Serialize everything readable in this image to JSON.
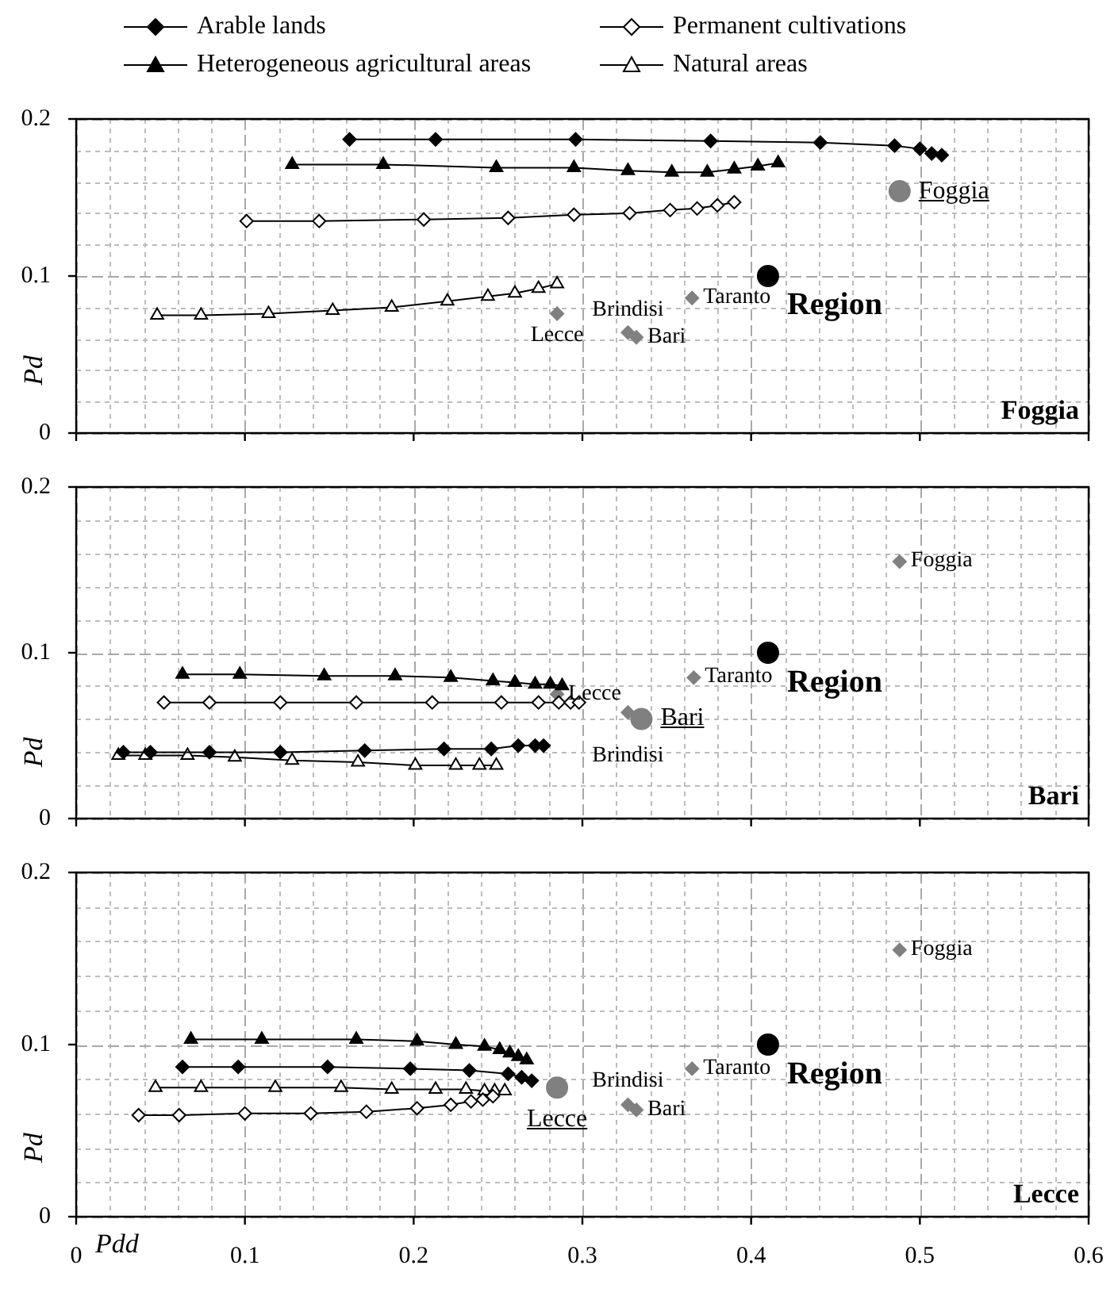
{
  "chart_data": [
    {
      "type": "line",
      "title": "Foggia",
      "ylabel": "Pd",
      "legend": "top",
      "grid": true,
      "tick_labels": "y",
      "xlim": [
        0,
        0.6
      ],
      "ylim": [
        0,
        0.2
      ],
      "xticks": [
        0,
        {
          "value": 0.02,
          "label": null
        },
        {
          "value": 0.04,
          "label": null
        },
        {
          "value": 0.06,
          "label": null
        },
        {
          "value": 0.08,
          "label": null
        },
        0.1,
        {
          "value": 0.12,
          "label": null
        },
        {
          "value": 0.14,
          "label": null
        },
        {
          "value": 0.16,
          "label": null
        },
        {
          "value": 0.18,
          "label": null
        },
        0.2,
        {
          "value": 0.22,
          "label": null
        },
        {
          "value": 0.24,
          "label": null
        },
        {
          "value": 0.26,
          "label": null
        },
        {
          "value": 0.28,
          "label": null
        },
        0.3,
        {
          "value": 0.32,
          "label": null
        },
        {
          "value": 0.34,
          "label": null
        },
        {
          "value": 0.36,
          "label": null
        },
        {
          "value": 0.38,
          "label": null
        },
        0.4,
        {
          "value": 0.42,
          "label": null
        },
        {
          "value": 0.44,
          "label": null
        },
        {
          "value": 0.46,
          "label": null
        },
        {
          "value": 0.48,
          "label": null
        },
        0.5,
        {
          "value": 0.52,
          "label": null
        },
        {
          "value": 0.54,
          "label": null
        },
        {
          "value": 0.56,
          "label": null
        },
        {
          "value": 0.58,
          "label": null
        },
        0.6
      ],
      "yticks": [
        0,
        {
          "value": 0.02,
          "label": null
        },
        {
          "value": 0.04,
          "label": null
        },
        {
          "value": 0.06,
          "label": null
        },
        {
          "value": 0.08,
          "label": null
        },
        0.1,
        {
          "value": 0.12,
          "label": null
        },
        {
          "value": 0.14,
          "label": null
        },
        {
          "value": 0.16,
          "label": null
        },
        {
          "value": 0.18,
          "label": null
        },
        0.2
      ],
      "series": [
        {
          "name": "Arable lands",
          "color": "#000000",
          "marker": "diamond",
          "x": [
            0.162,
            0.213,
            0.296,
            0.376,
            0.441,
            0.485,
            0.5,
            0.507,
            0.513
          ],
          "values": [
            0.187,
            0.187,
            0.187,
            0.186,
            0.185,
            0.183,
            0.181,
            0.178,
            0.177
          ]
        },
        {
          "name": "Permanent cultivations",
          "color": "#000000",
          "marker": "diamond",
          "colors": [
            "#ffffff",
            "#ffffff",
            "#ffffff",
            "#ffffff",
            "#ffffff",
            "#ffffff",
            "#ffffff",
            "#ffffff",
            "#ffffff",
            "#ffffff"
          ],
          "x": [
            0.101,
            0.144,
            0.206,
            0.256,
            0.295,
            0.328,
            0.352,
            0.368,
            0.38,
            0.39
          ],
          "values": [
            0.135,
            0.135,
            0.136,
            0.137,
            0.139,
            0.14,
            0.142,
            0.143,
            0.145,
            0.147
          ]
        },
        {
          "name": "Heterogeneous agricultural areas",
          "color": "#000000",
          "marker": "triangle",
          "x": [
            0.128,
            0.182,
            0.249,
            0.295,
            0.327,
            0.353,
            0.374,
            0.39,
            0.404,
            0.416
          ],
          "values": [
            0.171,
            0.171,
            0.169,
            0.169,
            0.167,
            0.166,
            0.166,
            0.168,
            0.17,
            0.172
          ]
        },
        {
          "name": "Natural areas",
          "color": "#000000",
          "marker": "triangle",
          "colors": [
            "#ffffff",
            "#ffffff",
            "#ffffff",
            "#ffffff",
            "#ffffff",
            "#ffffff",
            "#ffffff",
            "#ffffff",
            "#ffffff",
            "#ffffff"
          ],
          "x": [
            0.048,
            0.074,
            0.114,
            0.152,
            0.187,
            0.22,
            0.244,
            0.26,
            0.274,
            0.285
          ],
          "values": [
            0.075,
            0.075,
            0.076,
            0.078,
            0.08,
            0.084,
            0.087,
            0.089,
            0.092,
            0.095
          ]
        },
        {
          "type": "scatter",
          "color": "#808080",
          "marker": "diamond",
          "x": [
            0.365,
            0.285,
            0.327,
            0.332
          ],
          "values": [
            0.086,
            0.076,
            0.064,
            0.061
          ]
        },
        {
          "type": "scatter",
          "color": "#808080",
          "marker": "circle",
          "x": [
            0.488
          ],
          "values": [
            0.154
          ]
        },
        {
          "type": "scatter",
          "color": "#000000",
          "marker": "circle",
          "x": [
            0.41
          ],
          "values": [
            0.1
          ]
        }
      ],
      "annotations": [
        {
          "text": "Foggia",
          "x": 0.488,
          "y": 0.154
        },
        {
          "text": "Region",
          "x": 0.41,
          "y": 0.1
        },
        {
          "text": "Taranto",
          "x": 0.365,
          "y": 0.086
        },
        {
          "text": "Lecce",
          "x": 0.285,
          "y": 0.076
        },
        {
          "text": "Brindisi",
          "x": 0.327,
          "y": 0.064
        },
        {
          "text": "Bari",
          "x": 0.332,
          "y": 0.061
        }
      ]
    },
    {
      "type": "line",
      "title": "Bari",
      "ylabel": "Pd",
      "grid": true,
      "tick_labels": "y",
      "xlim": [
        0,
        0.6
      ],
      "ylim": [
        0,
        0.2
      ],
      "xticks": [
        0,
        {
          "value": 0.02,
          "label": null
        },
        {
          "value": 0.04,
          "label": null
        },
        {
          "value": 0.06,
          "label": null
        },
        {
          "value": 0.08,
          "label": null
        },
        0.1,
        {
          "value": 0.12,
          "label": null
        },
        {
          "value": 0.14,
          "label": null
        },
        {
          "value": 0.16,
          "label": null
        },
        {
          "value": 0.18,
          "label": null
        },
        0.2,
        {
          "value": 0.22,
          "label": null
        },
        {
          "value": 0.24,
          "label": null
        },
        {
          "value": 0.26,
          "label": null
        },
        {
          "value": 0.28,
          "label": null
        },
        0.3,
        {
          "value": 0.32,
          "label": null
        },
        {
          "value": 0.34,
          "label": null
        },
        {
          "value": 0.36,
          "label": null
        },
        {
          "value": 0.38,
          "label": null
        },
        0.4,
        {
          "value": 0.42,
          "label": null
        },
        {
          "value": 0.44,
          "label": null
        },
        {
          "value": 0.46,
          "label": null
        },
        {
          "value": 0.48,
          "label": null
        },
        0.5,
        {
          "value": 0.52,
          "label": null
        },
        {
          "value": 0.54,
          "label": null
        },
        {
          "value": 0.56,
          "label": null
        },
        {
          "value": 0.58,
          "label": null
        },
        0.6
      ],
      "yticks": [
        0,
        {
          "value": 0.02,
          "label": null
        },
        {
          "value": 0.04,
          "label": null
        },
        {
          "value": 0.06,
          "label": null
        },
        {
          "value": 0.08,
          "label": null
        },
        0.1,
        {
          "value": 0.12,
          "label": null
        },
        {
          "value": 0.14,
          "label": null
        },
        {
          "value": 0.16,
          "label": null
        },
        {
          "value": 0.18,
          "label": null
        },
        0.2
      ],
      "series": [
        {
          "color": "#000000",
          "marker": "diamond",
          "x": [
            0.028,
            0.044,
            0.079,
            0.121,
            0.171,
            0.218,
            0.246,
            0.262,
            0.272,
            0.277
          ],
          "values": [
            0.04,
            0.04,
            0.04,
            0.04,
            0.041,
            0.042,
            0.042,
            0.044,
            0.044,
            0.044
          ]
        },
        {
          "color": "#000000",
          "marker": "diamond",
          "colors": [
            "#ffffff",
            "#ffffff",
            "#ffffff",
            "#ffffff",
            "#ffffff",
            "#ffffff",
            "#ffffff",
            "#ffffff",
            "#ffffff",
            "#ffffff"
          ],
          "x": [
            0.052,
            0.079,
            0.121,
            0.166,
            0.211,
            0.252,
            0.274,
            0.286,
            0.293,
            0.298
          ],
          "values": [
            0.07,
            0.07,
            0.07,
            0.07,
            0.07,
            0.07,
            0.07,
            0.07,
            0.07,
            0.07
          ]
        },
        {
          "color": "#000000",
          "marker": "triangle",
          "x": [
            0.063,
            0.097,
            0.147,
            0.189,
            0.222,
            0.247,
            0.26,
            0.272,
            0.281,
            0.288
          ],
          "values": [
            0.087,
            0.087,
            0.086,
            0.086,
            0.085,
            0.083,
            0.082,
            0.081,
            0.081,
            0.08
          ]
        },
        {
          "color": "#000000",
          "marker": "triangle",
          "colors": [
            "#ffffff",
            "#ffffff",
            "#ffffff",
            "#ffffff",
            "#ffffff",
            "#ffffff",
            "#ffffff",
            "#ffffff",
            "#ffffff",
            "#ffffff"
          ],
          "x": [
            0.025,
            0.041,
            0.066,
            0.094,
            0.128,
            0.167,
            0.201,
            0.225,
            0.239,
            0.249
          ],
          "values": [
            0.038,
            0.038,
            0.038,
            0.037,
            0.035,
            0.034,
            0.032,
            0.032,
            0.032,
            0.032
          ]
        },
        {
          "type": "scatter",
          "color": "#808080",
          "marker": "diamond",
          "x": [
            0.488,
            0.366,
            0.285,
            0.327
          ],
          "values": [
            0.155,
            0.085,
            0.075,
            0.064
          ]
        },
        {
          "type": "scatter",
          "color": "#808080",
          "marker": "circle",
          "x": [
            0.335
          ],
          "values": [
            0.06
          ]
        },
        {
          "type": "scatter",
          "color": "#000000",
          "marker": "circle",
          "x": [
            0.41
          ],
          "values": [
            0.1
          ]
        }
      ],
      "annotations": [
        {
          "text": "Bari",
          "x": 0.335,
          "y": 0.06
        },
        {
          "text": "Region",
          "x": 0.41,
          "y": 0.1
        },
        {
          "text": "Foggia",
          "x": 0.488,
          "y": 0.155
        },
        {
          "text": "Taranto",
          "x": 0.366,
          "y": 0.085
        },
        {
          "text": "Lecce",
          "x": 0.285,
          "y": 0.075
        },
        {
          "text": "Brindisi",
          "x": 0.327,
          "y": 0.064
        }
      ]
    },
    {
      "type": "line",
      "title": "Lecce",
      "xlabel": "Pdd",
      "ylabel": "Pd",
      "grid": true,
      "xlim": [
        0,
        0.6
      ],
      "ylim": [
        0,
        0.2
      ],
      "xticks": [
        0,
        {
          "value": 0.02,
          "label": null
        },
        {
          "value": 0.04,
          "label": null
        },
        {
          "value": 0.06,
          "label": null
        },
        {
          "value": 0.08,
          "label": null
        },
        0.1,
        {
          "value": 0.12,
          "label": null
        },
        {
          "value": 0.14,
          "label": null
        },
        {
          "value": 0.16,
          "label": null
        },
        {
          "value": 0.18,
          "label": null
        },
        0.2,
        {
          "value": 0.22,
          "label": null
        },
        {
          "value": 0.24,
          "label": null
        },
        {
          "value": 0.26,
          "label": null
        },
        {
          "value": 0.28,
          "label": null
        },
        0.3,
        {
          "value": 0.32,
          "label": null
        },
        {
          "value": 0.34,
          "label": null
        },
        {
          "value": 0.36,
          "label": null
        },
        {
          "value": 0.38,
          "label": null
        },
        0.4,
        {
          "value": 0.42,
          "label": null
        },
        {
          "value": 0.44,
          "label": null
        },
        {
          "value": 0.46,
          "label": null
        },
        {
          "value": 0.48,
          "label": null
        },
        0.5,
        {
          "value": 0.52,
          "label": null
        },
        {
          "value": 0.54,
          "label": null
        },
        {
          "value": 0.56,
          "label": null
        },
        {
          "value": 0.58,
          "label": null
        },
        0.6
      ],
      "yticks": [
        0,
        {
          "value": 0.02,
          "label": null
        },
        {
          "value": 0.04,
          "label": null
        },
        {
          "value": 0.06,
          "label": null
        },
        {
          "value": 0.08,
          "label": null
        },
        0.1,
        {
          "value": 0.12,
          "label": null
        },
        {
          "value": 0.14,
          "label": null
        },
        {
          "value": 0.16,
          "label": null
        },
        {
          "value": 0.18,
          "label": null
        },
        0.2
      ],
      "series": [
        {
          "color": "#000000",
          "marker": "diamond",
          "x": [
            0.063,
            0.096,
            0.149,
            0.198,
            0.233,
            0.256,
            0.264,
            0.27
          ],
          "values": [
            0.087,
            0.087,
            0.087,
            0.086,
            0.085,
            0.083,
            0.081,
            0.079
          ]
        },
        {
          "color": "#000000",
          "marker": "diamond",
          "colors": [
            "#ffffff",
            "#ffffff",
            "#ffffff",
            "#ffffff",
            "#ffffff",
            "#ffffff",
            "#ffffff",
            "#ffffff",
            "#ffffff",
            "#ffffff"
          ],
          "x": [
            0.037,
            0.061,
            0.1,
            0.139,
            0.172,
            0.202,
            0.222,
            0.234,
            0.241,
            0.247
          ],
          "values": [
            0.059,
            0.059,
            0.06,
            0.06,
            0.061,
            0.063,
            0.065,
            0.067,
            0.068,
            0.07
          ]
        },
        {
          "color": "#000000",
          "marker": "triangle",
          "x": [
            0.068,
            0.11,
            0.166,
            0.202,
            0.225,
            0.242,
            0.251,
            0.257,
            0.262,
            0.267
          ],
          "values": [
            0.103,
            0.103,
            0.103,
            0.102,
            0.1,
            0.099,
            0.097,
            0.095,
            0.093,
            0.091
          ]
        },
        {
          "color": "#000000",
          "marker": "triangle",
          "colors": [
            "#ffffff",
            "#ffffff",
            "#ffffff",
            "#ffffff",
            "#ffffff",
            "#ffffff",
            "#ffffff",
            "#ffffff",
            "#ffffff",
            "#ffffff"
          ],
          "x": [
            0.047,
            0.074,
            0.118,
            0.157,
            0.187,
            0.213,
            0.231,
            0.242,
            0.248,
            0.254
          ],
          "values": [
            0.075,
            0.075,
            0.075,
            0.075,
            0.074,
            0.074,
            0.074,
            0.073,
            0.073,
            0.073
          ]
        },
        {
          "type": "scatter",
          "color": "#808080",
          "marker": "diamond",
          "x": [
            0.488,
            0.365,
            0.327,
            0.332
          ],
          "values": [
            0.155,
            0.086,
            0.065,
            0.062
          ]
        },
        {
          "type": "scatter",
          "color": "#808080",
          "marker": "circle",
          "x": [
            0.285
          ],
          "values": [
            0.075
          ]
        },
        {
          "type": "scatter",
          "color": "#000000",
          "marker": "circle",
          "x": [
            0.41
          ],
          "values": [
            0.1
          ]
        }
      ],
      "annotations": [
        {
          "text": "Lecce",
          "x": 0.285,
          "y": 0.075
        },
        {
          "text": "Region",
          "x": 0.41,
          "y": 0.1
        },
        {
          "text": "Foggia",
          "x": 0.488,
          "y": 0.155
        },
        {
          "text": "Taranto",
          "x": 0.365,
          "y": 0.086
        },
        {
          "text": "Brindisi",
          "x": 0.327,
          "y": 0.065
        },
        {
          "text": "Bari",
          "x": 0.332,
          "y": 0.062
        }
      ]
    }
  ]
}
